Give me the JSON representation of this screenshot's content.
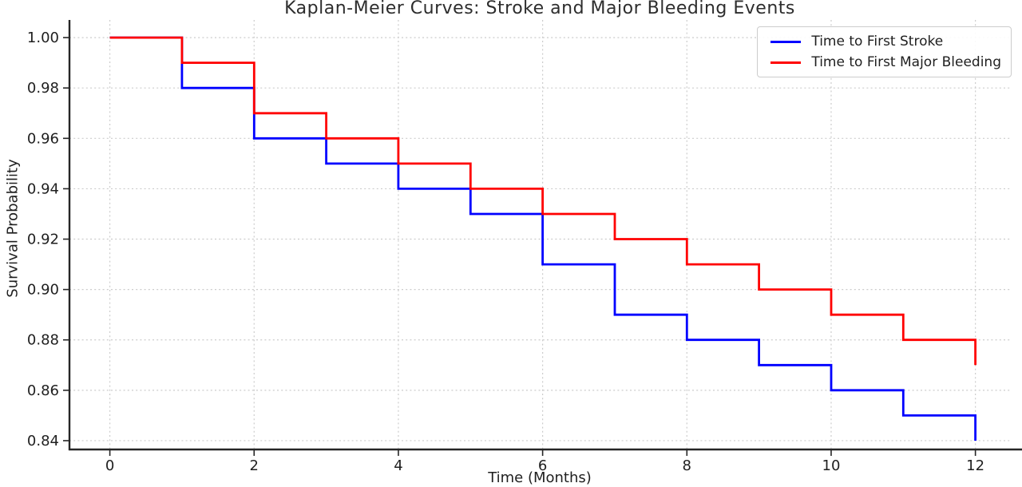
{
  "chart_data": {
    "type": "line",
    "subtype": "step-post",
    "title": "Kaplan-Meier Curves: Stroke and Major Bleeding Events",
    "xlabel": "Time (Months)",
    "ylabel": "Survival Probability",
    "x": [
      0,
      1,
      2,
      3,
      4,
      5,
      6,
      7,
      8,
      9,
      10,
      11,
      12
    ],
    "series": [
      {
        "name": "Time to First Stroke",
        "color": "#0000ff",
        "values": [
          1.0,
          0.98,
          0.96,
          0.95,
          0.94,
          0.93,
          0.91,
          0.89,
          0.88,
          0.87,
          0.86,
          0.85,
          0.84
        ]
      },
      {
        "name": "Time to First Major Bleeding",
        "color": "#ff0000",
        "values": [
          1.0,
          0.99,
          0.97,
          0.96,
          0.95,
          0.94,
          0.93,
          0.92,
          0.91,
          0.9,
          0.89,
          0.88,
          0.87
        ]
      }
    ],
    "xticks": [
      0,
      2,
      4,
      6,
      8,
      10,
      12
    ],
    "xtick_labels": [
      "0",
      "2",
      "4",
      "6",
      "8",
      "10",
      "12"
    ],
    "yticks": [
      0.84,
      0.86,
      0.88,
      0.9,
      0.92,
      0.94,
      0.96,
      0.98,
      1.0
    ],
    "ytick_labels": [
      "0.84",
      "0.86",
      "0.88",
      "0.90",
      "0.92",
      "0.94",
      "0.96",
      "0.98",
      "1.00"
    ],
    "xlim": [
      -0.56,
      12.48
    ],
    "ylim": [
      0.8365,
      1.007
    ],
    "grid": true,
    "grid_color": "#cccccc",
    "axis_color": "#262626",
    "tick_text_color": "#1f1f1f",
    "legend_position": "upper right",
    "line_width": 2.8
  }
}
